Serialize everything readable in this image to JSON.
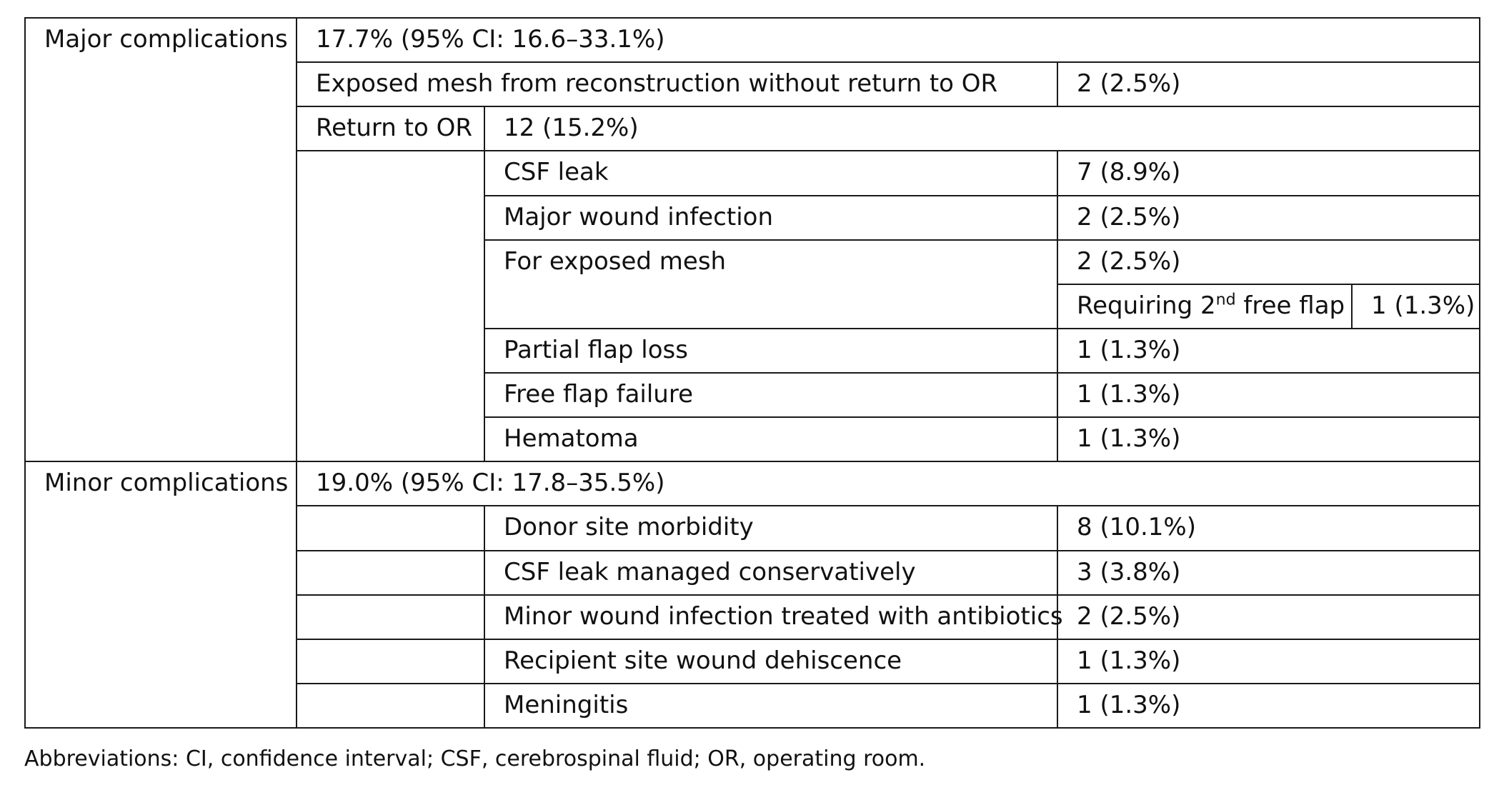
{
  "major": {
    "label": "Major complications",
    "summary": "17.7% (95% CI: 16.6–33.1%)",
    "exposed_mesh_no_or": {
      "label": "Exposed mesh from reconstruction without return to OR",
      "value": "2 (2.5%)"
    },
    "return_to_or": {
      "label": "Return to OR",
      "value": "12 (15.2%)"
    },
    "items": [
      {
        "label": "CSF leak",
        "value": "7 (8.9%)"
      },
      {
        "label": "Major wound infection",
        "value": "2 (2.5%)"
      },
      {
        "label": "For exposed mesh",
        "value": "2 (2.5%)"
      }
    ],
    "second_flap": {
      "label_prefix": "Requiring 2",
      "label_sup": "nd",
      "label_suffix": " free flap",
      "value": "1 (1.3%)"
    },
    "items_after": [
      {
        "label": "Partial flap loss",
        "value": "1 (1.3%)"
      },
      {
        "label": "Free flap failure",
        "value": "1 (1.3%)"
      },
      {
        "label": "Hematoma",
        "value": "1 (1.3%)"
      }
    ]
  },
  "minor": {
    "label": "Minor complications",
    "summary": "19.0% (95% CI: 17.8–35.5%)",
    "items": [
      {
        "label": "Donor site morbidity",
        "value": "8 (10.1%)"
      },
      {
        "label": "CSF leak managed conservatively",
        "value": "3 (3.8%)"
      },
      {
        "label": "Minor wound infection treated with antibiotics",
        "value": "2 (2.5%)"
      },
      {
        "label": "Recipient site wound dehiscence",
        "value": "1 (1.3%)"
      },
      {
        "label": "Meningitis",
        "value": "1 (1.3%)"
      }
    ]
  },
  "footnote": "Abbreviations: CI, confidence interval; CSF, cerebrospinal fluid; OR, operating room."
}
